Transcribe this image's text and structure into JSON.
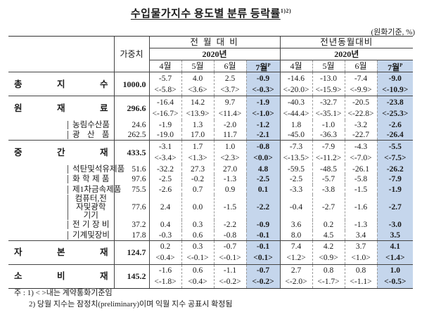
{
  "title": "수입물가지수 용도별 분류 등락률",
  "title_sup": "1)2)",
  "unit": "(원화기준, %)",
  "header": {
    "weight": "가중치",
    "group_mom": "전 월 대 비",
    "group_yoy": "전년동월대비",
    "year_mom": "2020년",
    "year_yoy": "2020년",
    "months": [
      "4월",
      "5월",
      "6월",
      "7월"
    ],
    "prelim_mark": "P"
  },
  "rows": [
    {
      "label": [
        "총",
        "지",
        "수"
      ],
      "level": 0,
      "weight": "1000.0",
      "mom": [
        "-5.7",
        "4.0",
        "2.5",
        "-0.9"
      ],
      "mom_c": [
        "<-5.8>",
        "<3.6>",
        "<3.7>",
        "<-0.3>"
      ],
      "yoy": [
        "-14.6",
        "-13.0",
        "-7.4",
        "-9.0"
      ],
      "yoy_c": [
        "<-20.0>",
        "<-15.9>",
        "<-9.9>",
        "<-10.9>"
      ]
    },
    {
      "label": [
        "원",
        "재",
        "료"
      ],
      "level": 0,
      "weight": "296.6",
      "mom": [
        "-16.4",
        "14.2",
        "9.7",
        "-1.9"
      ],
      "mom_c": [
        "<-16.7>",
        "<13.9>",
        "<11.4>",
        "<-1.0>"
      ],
      "yoy": [
        "-40.3",
        "-32.7",
        "-20.5",
        "-23.8"
      ],
      "yoy_c": [
        "<-44.4>",
        "<-35.1>",
        "<-22.8>",
        "<-25.3>"
      ]
    },
    {
      "label": [
        "농",
        "림",
        "수",
        "산",
        "품"
      ],
      "level": 1,
      "weight": "24.6",
      "mom": [
        "-1.9",
        "1.3",
        "-2.0",
        "-1.2"
      ],
      "yoy": [
        "1.8",
        "-1.0",
        "-3.2",
        "-2.6"
      ]
    },
    {
      "label": [
        "광",
        "산",
        "품"
      ],
      "level": 1,
      "weight": "262.5",
      "mom": [
        "-19.0",
        "17.0",
        "11.7",
        "-2.1"
      ],
      "yoy": [
        "-45.0",
        "-36.3",
        "-22.7",
        "-26.4"
      ]
    },
    {
      "label": [
        "중",
        "간",
        "재"
      ],
      "level": 0,
      "weight": "433.5",
      "mom": [
        "-3.1",
        "1.7",
        "1.0",
        "-0.8"
      ],
      "mom_c": [
        "<-3.4>",
        "<1.3>",
        "<2.3>",
        "<0.0>"
      ],
      "yoy": [
        "-7.3",
        "-7.9",
        "-4.3",
        "-5.5"
      ],
      "yoy_c": [
        "<-13.5>",
        "<-11.2>",
        "<-7.0>",
        "<-7.5>"
      ]
    },
    {
      "label": [
        "석",
        "탄",
        "및",
        "석",
        "유",
        "제",
        "품"
      ],
      "level": 1,
      "weight": "51.6",
      "mom": [
        "-32.2",
        "27.3",
        "27.0",
        "4.8"
      ],
      "yoy": [
        "-59.5",
        "-48.5",
        "-26.1",
        "-26.2"
      ]
    },
    {
      "label": [
        "화",
        "학",
        "제",
        "품"
      ],
      "level": 1,
      "weight": "97.6",
      "mom": [
        "-2.5",
        "-0.2",
        "-1.3",
        "-2.5"
      ],
      "yoy": [
        "-2.5",
        "-5.7",
        "-5.8",
        "-7.9"
      ]
    },
    {
      "label": [
        "제",
        "1",
        "차",
        "금",
        "속",
        "제",
        "품"
      ],
      "level": 1,
      "weight": "75.5",
      "mom": [
        "-2.6",
        "0.7",
        "0.9",
        "0.1"
      ],
      "yoy": [
        "-3.3",
        "-3.8",
        "-1.5",
        "-1.9"
      ]
    },
    {
      "label": [
        "컴퓨터,전자및광학기기"
      ],
      "level": 1,
      "weight": "77.6",
      "mom": [
        "2.4",
        "0.0",
        "-1.5",
        "-2.2"
      ],
      "yoy": [
        "-0.4",
        "-2.7",
        "-1.6",
        "-2.7"
      ]
    },
    {
      "label": [
        "전",
        "기",
        "장",
        "비"
      ],
      "level": 1,
      "weight": "37.2",
      "mom": [
        "0.4",
        "0.3",
        "-2.2",
        "-0.9"
      ],
      "yoy": [
        "3.6",
        "0.2",
        "-1.3",
        "-3.0"
      ]
    },
    {
      "label": [
        "기",
        "계",
        "및",
        "장",
        "비"
      ],
      "level": 1,
      "weight": "17.8",
      "mom": [
        "-0.3",
        "0.6",
        "-0.8",
        "-0.1"
      ],
      "yoy": [
        "8.0",
        "4.5",
        "3.4",
        "3.5"
      ]
    },
    {
      "label": [
        "자",
        "본",
        "재"
      ],
      "level": 0,
      "weight": "124.7",
      "mom": [
        "0.2",
        "0.3",
        "-0.7",
        "-0.1"
      ],
      "mom_c": [
        "<0.4>",
        "<-0.1>",
        "<-0.1>",
        "<0.1>"
      ],
      "yoy": [
        "7.4",
        "4.2",
        "3.7",
        "4.1"
      ],
      "yoy_c": [
        "<1.2>",
        "<0.9>",
        "<1.0>",
        "<1.4>"
      ]
    },
    {
      "label": [
        "소",
        "비",
        "재"
      ],
      "level": 0,
      "weight": "145.2",
      "mom": [
        "-1.6",
        "0.6",
        "-1.1",
        "-0.7"
      ],
      "mom_c": [
        "<-1.8>",
        "<0.4>",
        "<-0.2>",
        "<-0.2>"
      ],
      "yoy": [
        "2.7",
        "0.8",
        "0.8",
        "1.0"
      ],
      "yoy_c": [
        "<-2.0>",
        "<-1.7>",
        "<-1.1>",
        "<-0.5>"
      ]
    }
  ],
  "notes": {
    "prefix": "주 :",
    "note1": "1) < >내는 계약통화기준임",
    "note2": "2) 당월 지수는 잠정치(preliminary)이며 익월 지수 공표시 확정됨"
  },
  "colors": {
    "highlight": "#c5d6ec"
  }
}
